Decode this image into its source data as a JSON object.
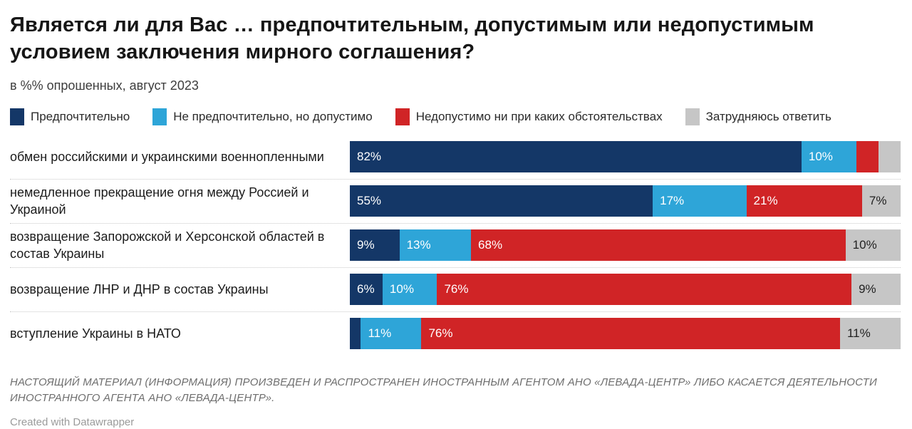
{
  "title": "Является ли для Вас … предпочтительным, допустимым или недопустимым условием заключения мирного соглашения?",
  "subtitle": "в %% опрошенных, август 2023",
  "colors": {
    "preferred_navy": "#143767",
    "acceptable_cyan": "#2ea5d8",
    "unacceptable_red": "#d02426",
    "undecided_gray": "#c6c6c6",
    "separator": "#c9c9c9",
    "title_text": "#161616",
    "footer_text": "#6e6e6e",
    "credit_text": "#9b9b9b"
  },
  "chart_data": {
    "type": "bar",
    "stacked": true,
    "orientation": "horizontal",
    "value_suffix": "%",
    "xlim": [
      0,
      100
    ],
    "grid": false,
    "legend_position": "top",
    "label_min_value": 6,
    "categories": [
      "обмен российскими и украинскими военнопленными",
      "немедленное прекращение огня между Россией и Украиной",
      "возвращение Запорожской и Херсонской областей в состав Украины",
      "возвращение ЛНР и ДНР в состав Украины",
      "вступление Украины в НАТО"
    ],
    "series": [
      {
        "name": "Предпочтительно",
        "color": "#143767",
        "label_dark": false,
        "values": [
          82,
          55,
          9,
          6,
          2
        ]
      },
      {
        "name": "Не предпочтительно, но допустимо",
        "color": "#2ea5d8",
        "label_dark": false,
        "values": [
          10,
          17,
          13,
          10,
          11
        ]
      },
      {
        "name": "Недопустимо ни при каких обстоятельствах",
        "color": "#d02426",
        "label_dark": false,
        "values": [
          4,
          21,
          68,
          76,
          76
        ]
      },
      {
        "name": "Затрудняюсь ответить",
        "color": "#c6c6c6",
        "label_dark": true,
        "values": [
          4,
          7,
          10,
          9,
          11
        ]
      }
    ]
  },
  "footer": {
    "notice": "НАСТОЯЩИЙ МАТЕРИАЛ (ИНФОРМАЦИЯ) ПРОИЗВЕДЕН И РАСПРОСТРАНЕН ИНОСТРАННЫМ АГЕНТОМ АНО «ЛЕВАДА-ЦЕНТР» ЛИБО КАСАЕТСЯ ДЕЯТЕЛЬНОСТИ ИНОСТРАННОГО АГЕНТА АНО «ЛЕВАДА-ЦЕНТР».",
    "credit": "Created with Datawrapper"
  }
}
